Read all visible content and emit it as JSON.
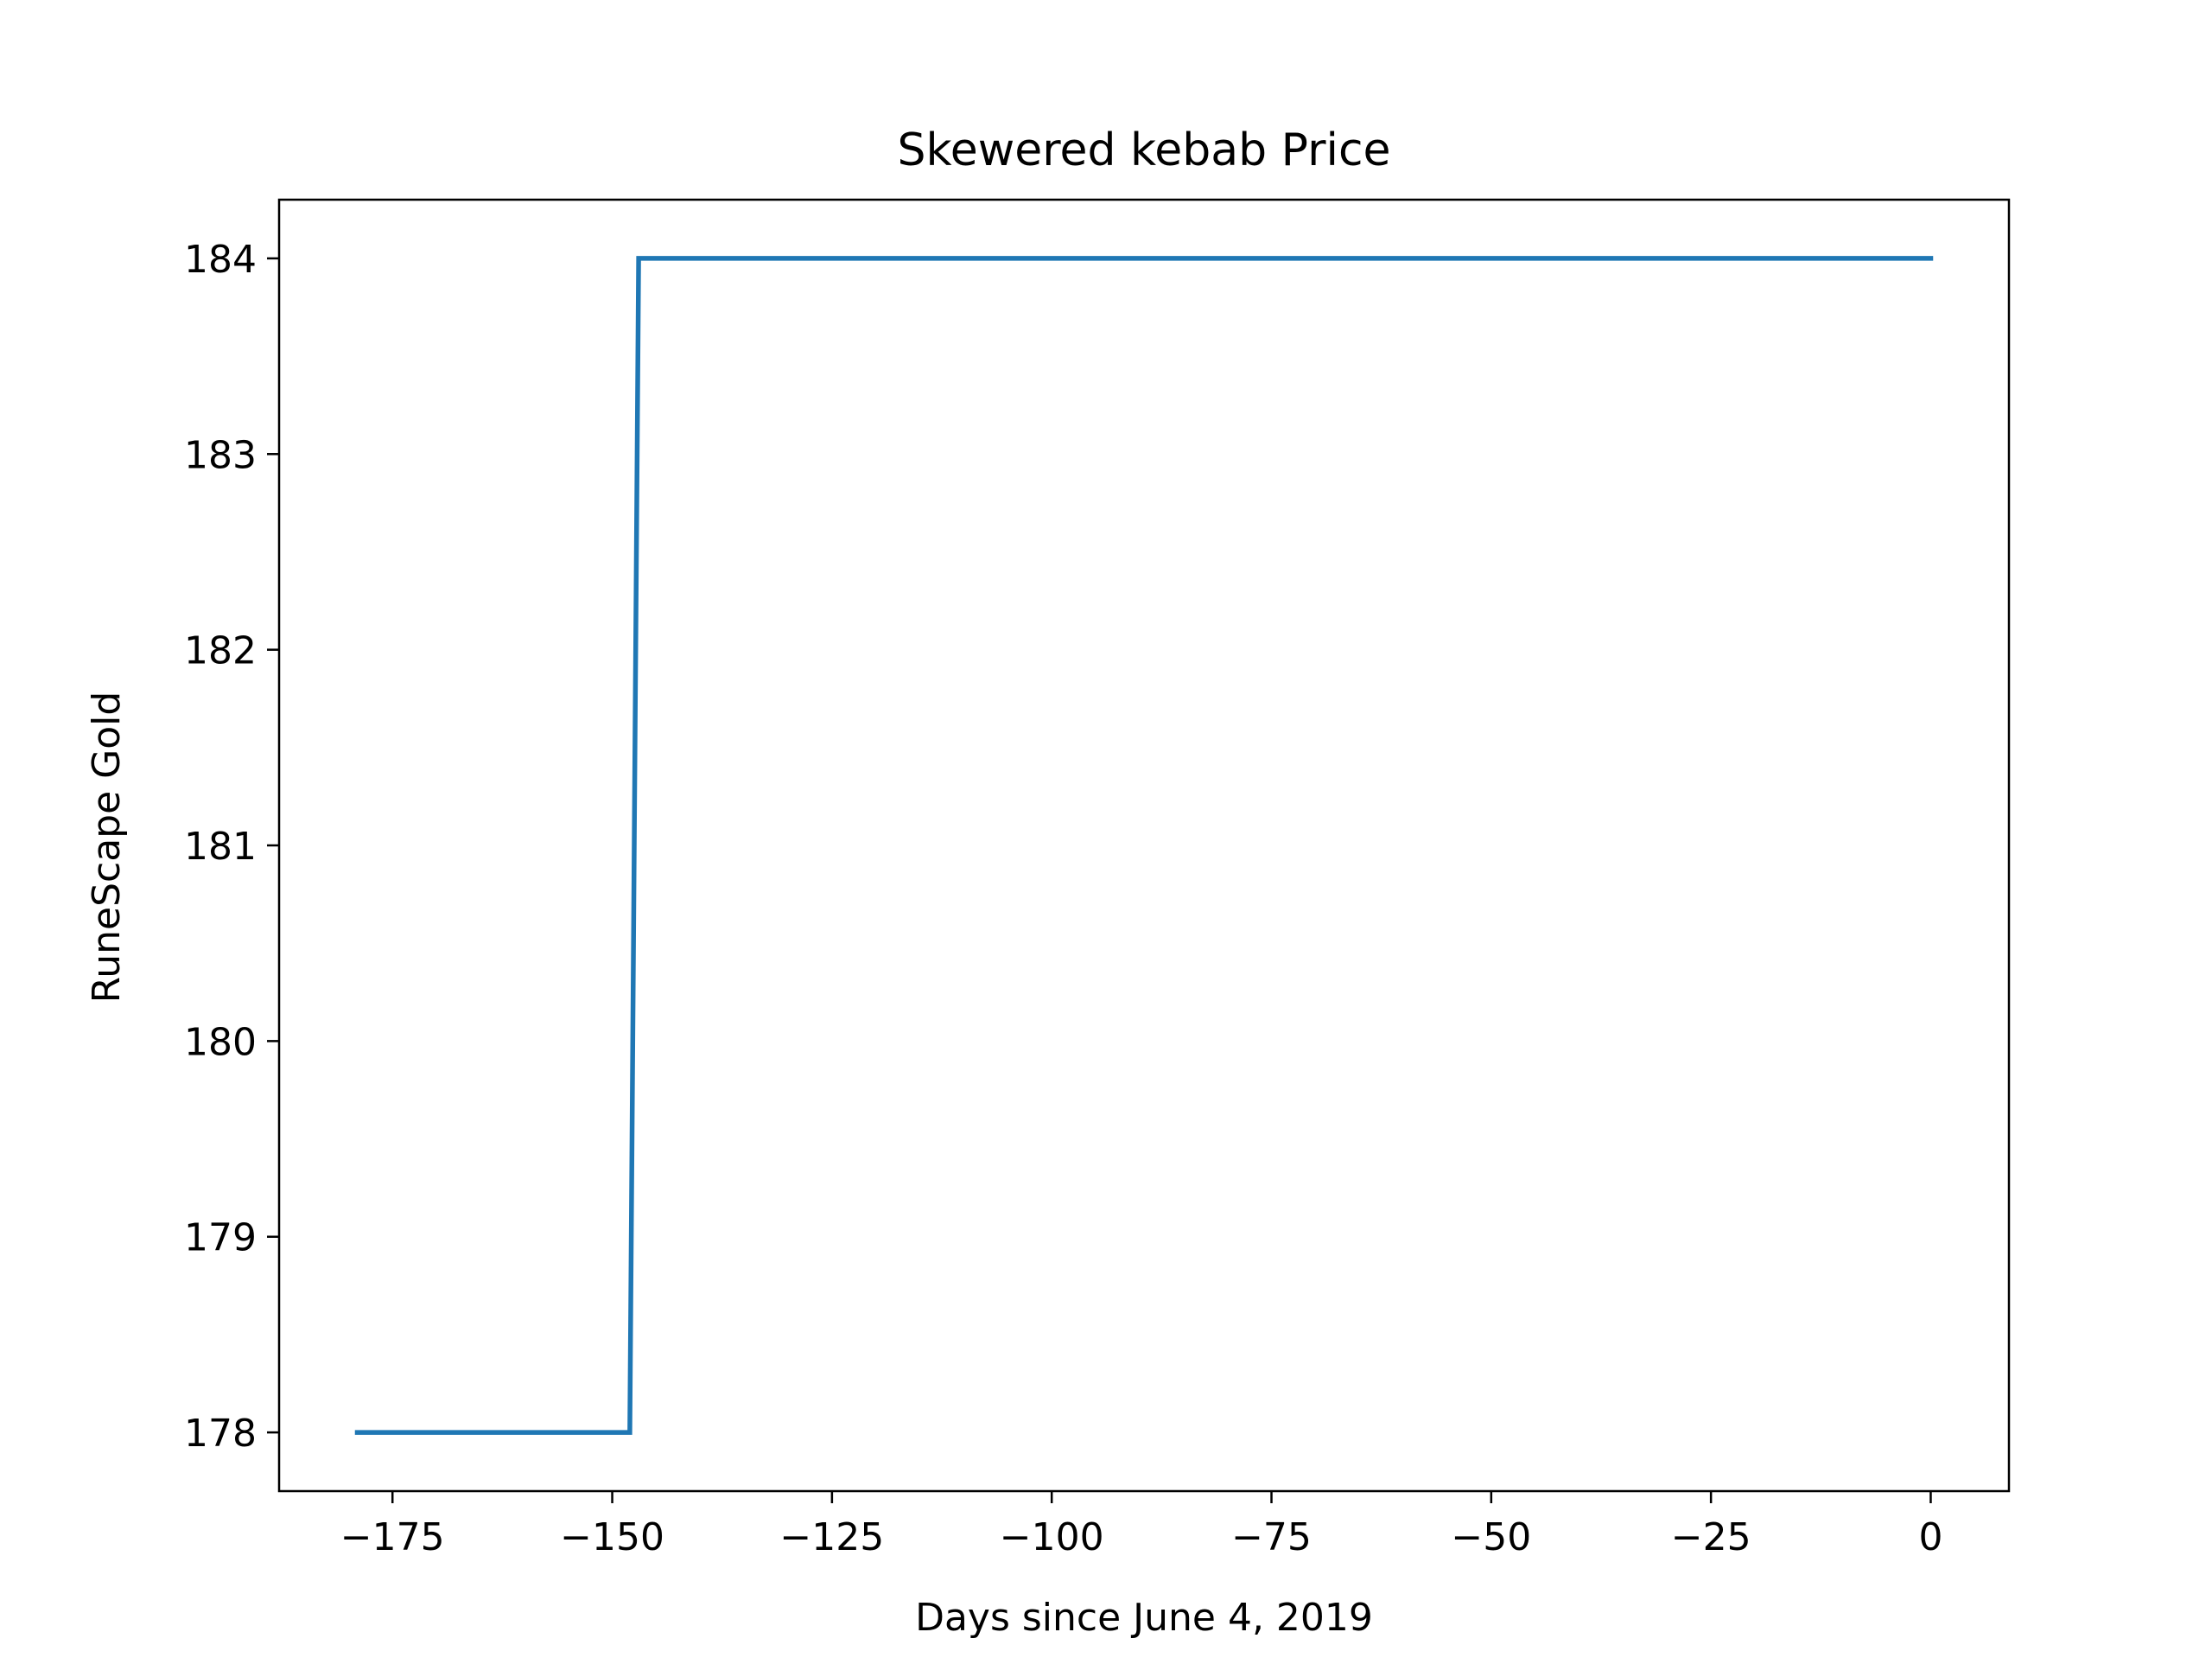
{
  "chart_data": {
    "type": "line",
    "title": "Skewered kebab Price",
    "xlabel": "Days since June 4, 2019",
    "ylabel": "RuneScape Gold",
    "xlim": [
      -187.9,
      8.9
    ],
    "ylim": [
      177.7,
      184.3
    ],
    "xticks": [
      -175,
      -150,
      -125,
      -100,
      -75,
      -50,
      -25,
      0
    ],
    "xtick_labels": [
      "−175",
      "−150",
      "−125",
      "−100",
      "−75",
      "−50",
      "−25",
      "0"
    ],
    "yticks": [
      178,
      179,
      180,
      181,
      182,
      183,
      184
    ],
    "ytick_labels": [
      "178",
      "179",
      "180",
      "181",
      "182",
      "183",
      "184"
    ],
    "grid": false,
    "series": [
      {
        "color": "#1f77b4",
        "x": [
          -179,
          -148,
          -147,
          0
        ],
        "y": [
          178,
          178,
          184,
          184
        ]
      }
    ]
  }
}
